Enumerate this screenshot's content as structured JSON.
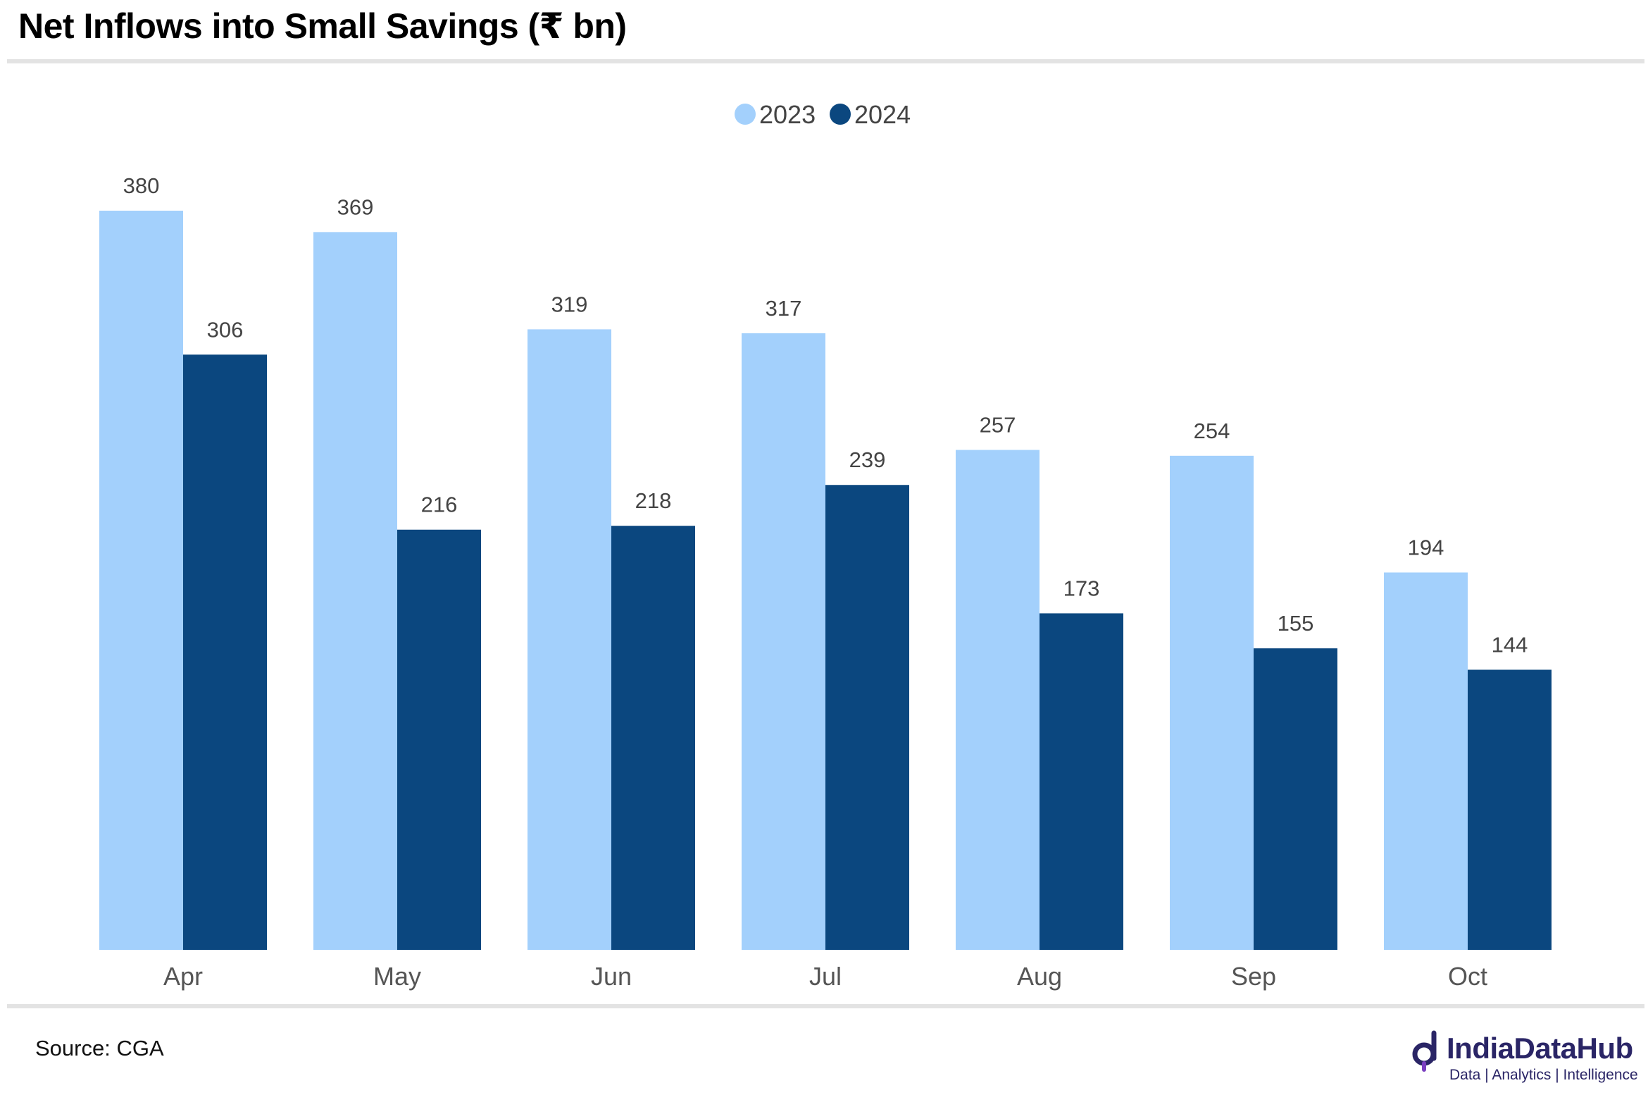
{
  "title": "Net Inflows into Small Savings (₹ bn)",
  "source": "Source: CGA",
  "logo": {
    "name": "IndiaDataHub",
    "tagline": "Data | Analytics | Intelligence"
  },
  "chart_data": {
    "type": "bar",
    "categories": [
      "Apr",
      "May",
      "Jun",
      "Jul",
      "Aug",
      "Sep",
      "Oct"
    ],
    "series": [
      {
        "name": "2023",
        "color": "#a3d0fc",
        "values": [
          380,
          369,
          319,
          317,
          257,
          254,
          194
        ]
      },
      {
        "name": "2024",
        "color": "#0b477f",
        "values": [
          306,
          216,
          218,
          239,
          173,
          155,
          144
        ]
      }
    ],
    "title": "Net Inflows into Small Savings (₹ bn)",
    "xlabel": "",
    "ylabel": "",
    "ylim": [
      0,
      380
    ],
    "grid": false,
    "legend": "top-center",
    "data_labels": true
  }
}
